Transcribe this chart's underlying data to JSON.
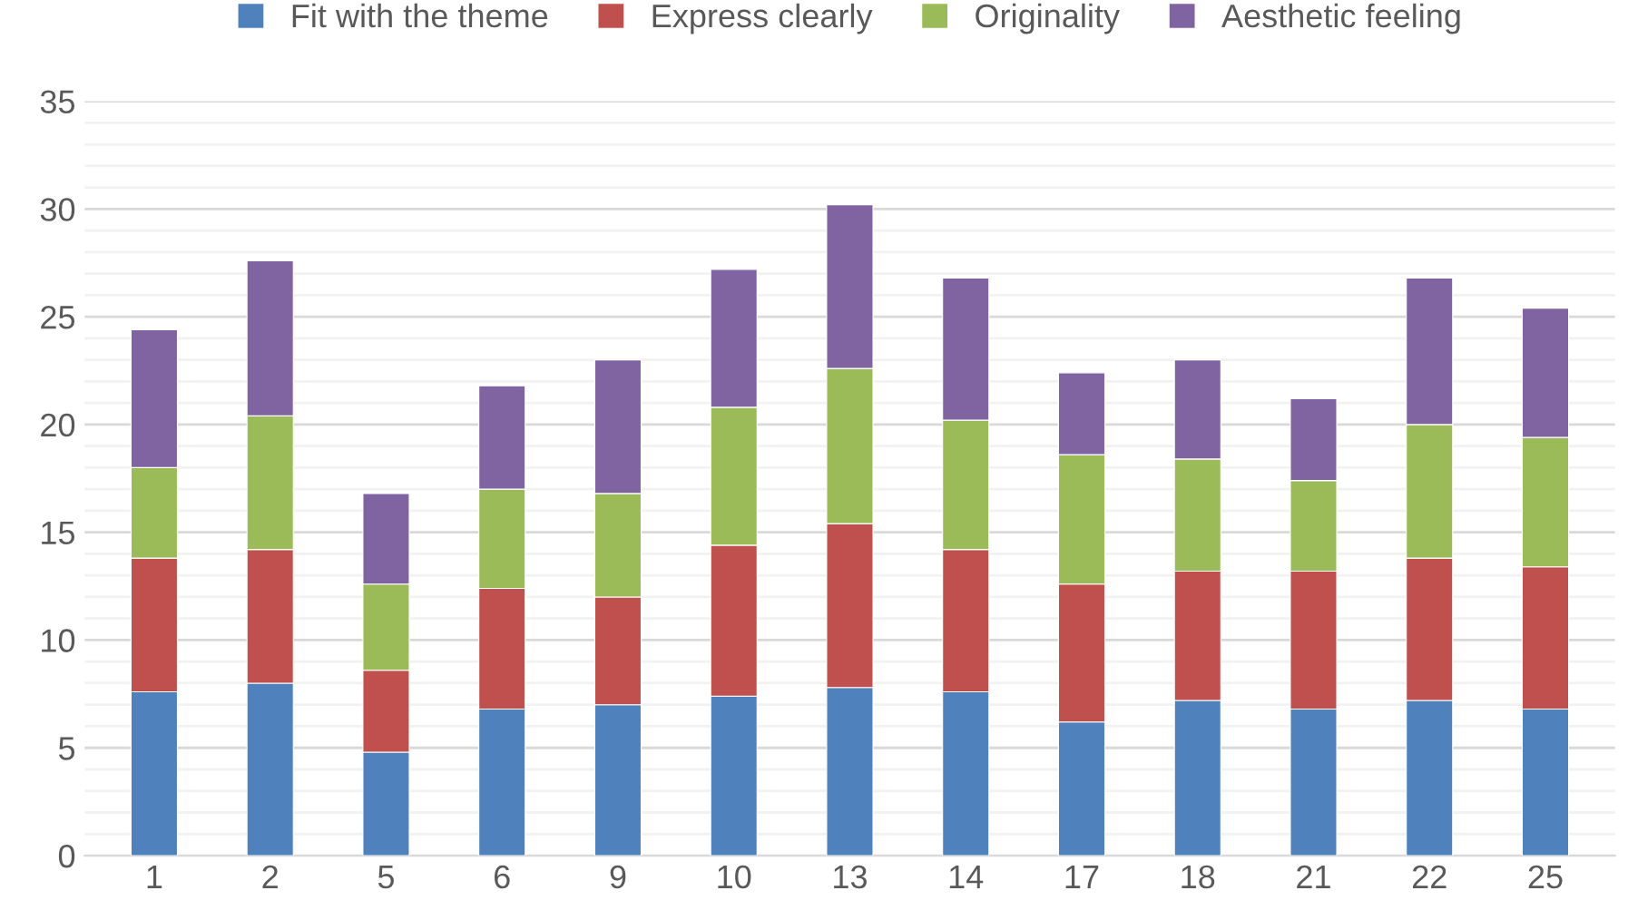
{
  "chart_data": {
    "type": "bar",
    "stacked": true,
    "categories": [
      "1",
      "2",
      "5",
      "6",
      "9",
      "10",
      "13",
      "14",
      "17",
      "18",
      "21",
      "22",
      "25"
    ],
    "series": [
      {
        "name": "Fit with the theme",
        "color": "#4f81bd",
        "values": [
          7.6,
          8.0,
          4.8,
          6.8,
          7.0,
          7.4,
          7.8,
          7.6,
          6.2,
          7.2,
          6.8,
          7.2,
          6.8
        ]
      },
      {
        "name": "Express clearly",
        "color": "#c0504d",
        "values": [
          6.2,
          6.2,
          3.8,
          5.6,
          5.0,
          7.0,
          7.6,
          6.6,
          6.4,
          6.0,
          6.4,
          6.6,
          6.6
        ]
      },
      {
        "name": "Originality",
        "color": "#9bbb59",
        "values": [
          4.2,
          6.2,
          4.0,
          4.6,
          4.8,
          6.4,
          7.2,
          6.0,
          6.0,
          5.2,
          4.2,
          6.2,
          6.0
        ]
      },
      {
        "name": "Aesthetic feeling",
        "color": "#8064a2",
        "values": [
          6.4,
          7.2,
          4.2,
          4.8,
          6.2,
          6.4,
          7.6,
          6.6,
          3.8,
          4.6,
          3.8,
          6.8,
          6.0
        ]
      }
    ],
    "ylim": [
      0,
      35
    ],
    "yticks": [
      0,
      5,
      10,
      15,
      20,
      25,
      30,
      35
    ],
    "grid": "y",
    "legend": "top"
  }
}
